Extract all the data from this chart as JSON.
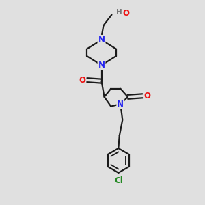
{
  "bg_color": "#e0e0e0",
  "bond_color": "#1a1a1a",
  "N_color": "#2222ee",
  "O_color": "#ee1111",
  "Cl_color": "#228822",
  "H_color": "#777777",
  "bond_width": 1.6,
  "font_size": 8.5,
  "fig_size": [
    3.0,
    3.0
  ],
  "dpi": 100,
  "xlim": [
    0,
    10
  ],
  "ylim": [
    0,
    10
  ]
}
